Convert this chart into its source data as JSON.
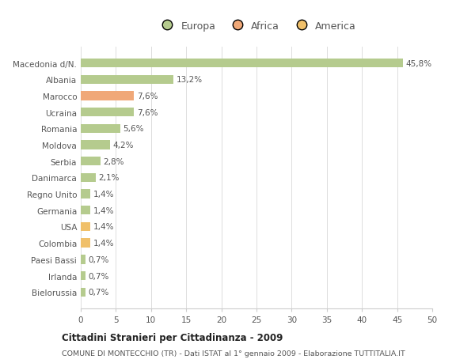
{
  "categories": [
    "Bielorussia",
    "Irlanda",
    "Paesi Bassi",
    "Colombia",
    "USA",
    "Germania",
    "Regno Unito",
    "Danimarca",
    "Serbia",
    "Moldova",
    "Romania",
    "Ucraina",
    "Marocco",
    "Albania",
    "Macedonia d/N."
  ],
  "values": [
    0.7,
    0.7,
    0.7,
    1.4,
    1.4,
    1.4,
    1.4,
    2.1,
    2.8,
    4.2,
    5.6,
    7.6,
    7.6,
    13.2,
    45.8
  ],
  "labels": [
    "0,7%",
    "0,7%",
    "0,7%",
    "1,4%",
    "1,4%",
    "1,4%",
    "1,4%",
    "2,1%",
    "2,8%",
    "4,2%",
    "5,6%",
    "7,6%",
    "7,6%",
    "13,2%",
    "45,8%"
  ],
  "colors": [
    "#b5cb8e",
    "#b5cb8e",
    "#b5cb8e",
    "#f0c06a",
    "#f0c06a",
    "#b5cb8e",
    "#b5cb8e",
    "#b5cb8e",
    "#b5cb8e",
    "#b5cb8e",
    "#b5cb8e",
    "#b5cb8e",
    "#f0a878",
    "#b5cb8e",
    "#b5cb8e"
  ],
  "legend": [
    {
      "label": "Europa",
      "color": "#b5cb8e"
    },
    {
      "label": "Africa",
      "color": "#f0a878"
    },
    {
      "label": "America",
      "color": "#f0c06a"
    }
  ],
  "xlim": [
    0,
    50
  ],
  "xticks": [
    0,
    5,
    10,
    15,
    20,
    25,
    30,
    35,
    40,
    45,
    50
  ],
  "title": "Cittadini Stranieri per Cittadinanza - 2009",
  "subtitle": "COMUNE DI MONTECCHIO (TR) - Dati ISTAT al 1° gennaio 2009 - Elaborazione TUTTITALIA.IT",
  "background_color": "#ffffff",
  "grid_color": "#dddddd",
  "bar_height": 0.55
}
